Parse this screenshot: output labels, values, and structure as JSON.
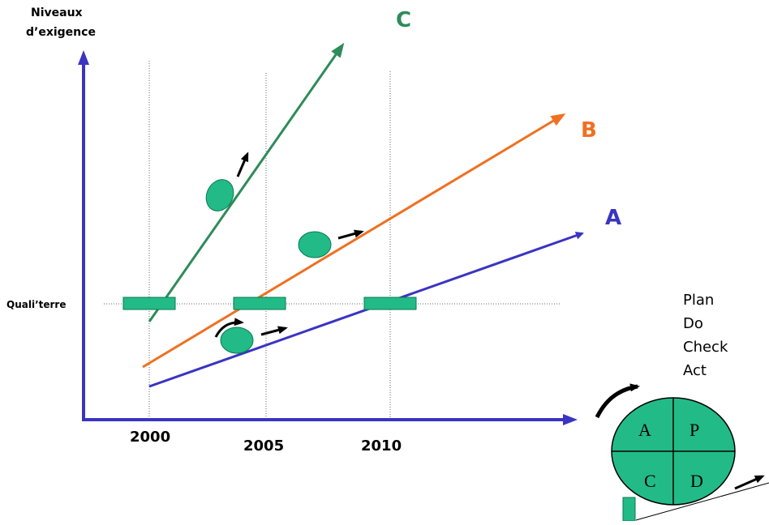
{
  "y_axis_label_line1": "Niveaux",
  "y_axis_label_line2": "d’exigence",
  "reference_label": "Quali’terre",
  "years": [
    "2000",
    "2005",
    "2010"
  ],
  "lines": {
    "A": {
      "label": "A",
      "color": "#3a34c2"
    },
    "B": {
      "label": "B",
      "color": "#f07020"
    },
    "C": {
      "label": "C",
      "color": "#2e8b5a"
    }
  },
  "pdca_steps": [
    "Plan",
    "Do",
    "Check",
    "Act"
  ],
  "pdca_wheel": {
    "top_left": "A",
    "top_right": "P",
    "bottom_left": "C",
    "bottom_right": "D"
  },
  "colors": {
    "axis": "#3a34c2",
    "marker_fill": "#22bb88",
    "marker_stroke": "#0a7a50",
    "arrow": "#000000",
    "gridline": "#666666"
  }
}
